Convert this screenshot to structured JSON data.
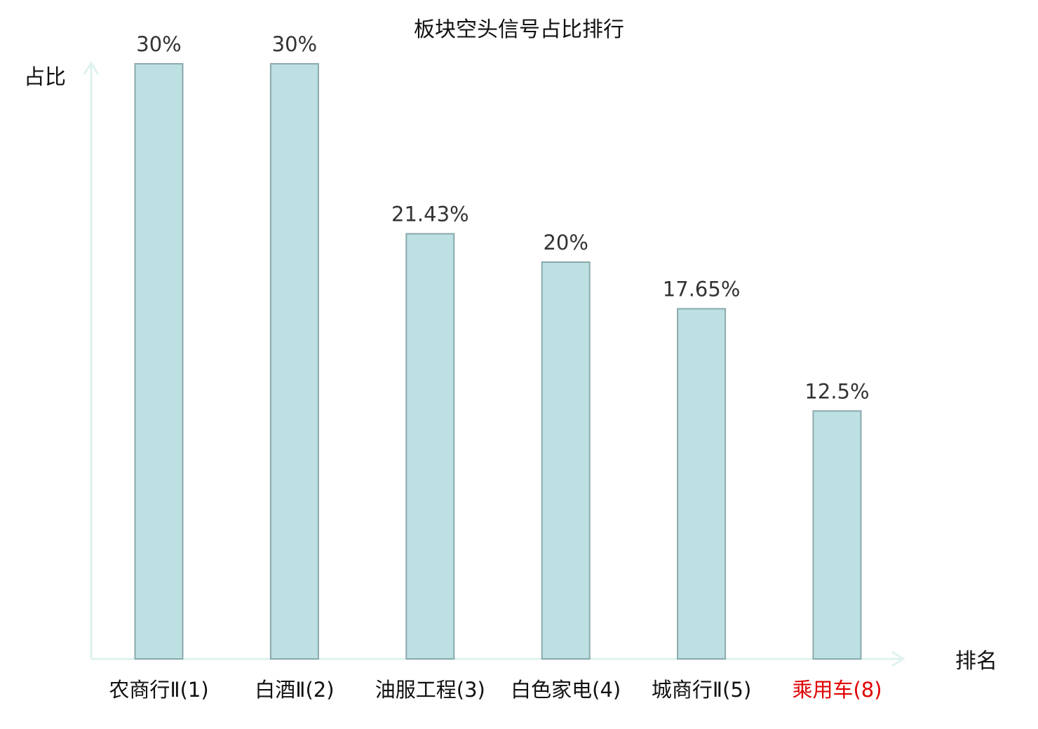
{
  "chart_data": {
    "type": "bar",
    "title": "板块空头信号占比排行",
    "xlabel": "排名",
    "ylabel": "占比",
    "categories": [
      "农商行Ⅱ(1)",
      "白酒Ⅱ(2)",
      "油服工程(3)",
      "白色家电(4)",
      "城商行Ⅱ(5)",
      "乘用车(8)"
    ],
    "highlight_category": "乘用车(8)",
    "series": [
      {
        "values": [
          30,
          30,
          21.43,
          20,
          17.65,
          12.5
        ]
      }
    ],
    "value_labels": [
      "30%",
      "30%",
      "21.43%",
      "20%",
      "17.65%",
      "12.5%"
    ],
    "ylim": [
      0,
      30
    ],
    "grid": false,
    "legend": "none"
  },
  "colors": {
    "bar_fill": "#bde0e3",
    "bar_stroke": "#8aa9ab",
    "axis": "#dff2ef",
    "label_text": "#111111",
    "highlight_text": "#e00000",
    "value_text": "#333333"
  }
}
